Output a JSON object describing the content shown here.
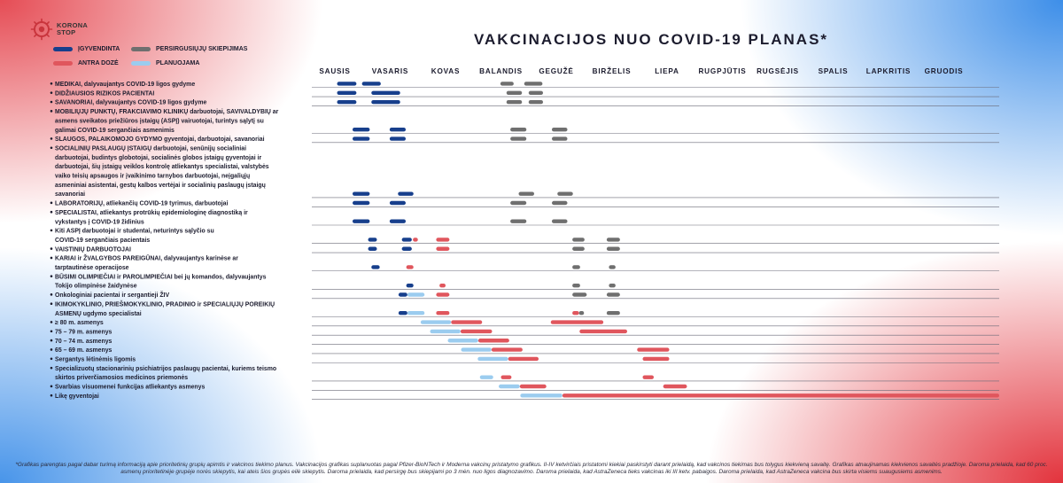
{
  "logo": {
    "text": "KORONA\nSTOP"
  },
  "title": "VAKCINACIJOS NUO COVID-19 PLANAS*",
  "colors": {
    "implemented": "#173f8c",
    "planned": "#9bccef",
    "second_dose": "#e0565d",
    "previously_ill": "#6f6f6f"
  },
  "legend": [
    {
      "key": "implemented",
      "label": "ĮGYVENDINTA"
    },
    {
      "key": "previously_ill",
      "label": "PERSIRGUSIŲJŲ SKIEPIJIMAS"
    },
    {
      "key": "second_dose",
      "label": "ANTRA DOZĖ"
    },
    {
      "key": "planned",
      "label": "PLANUOJAMA"
    }
  ],
  "chart_data": {
    "type": "gantt",
    "months": [
      "SAUSIS",
      "VASARIS",
      "KOVAS",
      "BALANDIS",
      "GEGUŽĖ",
      "BIRŽELIS",
      "LIEPA",
      "RUGPJŪTIS",
      "RUGSĖJIS",
      "SPALIS",
      "LAPKRITIS",
      "GRUODIS"
    ],
    "x_range": [
      1,
      13
    ],
    "rows": [
      {
        "lines": [
          "MEDIKAI, dalyvaujantys COVID-19 ligos gydyme"
        ],
        "segments": [
          [
            1.04,
            1.39,
            "implemented"
          ],
          [
            1.49,
            1.83,
            "implemented"
          ],
          [
            3.99,
            4.23,
            "previously_ill"
          ],
          [
            4.42,
            4.75,
            "previously_ill"
          ]
        ]
      },
      {
        "lines": [
          "DIDŽIAUSIOS RIZIKOS PACIENTAI"
        ],
        "segments": [
          [
            1.04,
            1.39,
            "implemented"
          ],
          [
            1.66,
            2.18,
            "implemented"
          ],
          [
            4.1,
            4.38,
            "previously_ill"
          ],
          [
            4.5,
            4.76,
            "previously_ill"
          ]
        ]
      },
      {
        "lines": [
          "SAVANORIAI, dalyvaujantys COVID-19 ligos gydyme"
        ],
        "segments": [
          [
            1.04,
            1.39,
            "implemented"
          ],
          [
            1.66,
            2.18,
            "implemented"
          ],
          [
            4.1,
            4.38,
            "previously_ill"
          ],
          [
            4.5,
            4.76,
            "previously_ill"
          ]
        ]
      },
      {
        "lines": [
          "MOBILIŲJŲ PUNKTŲ, FRAKCIAVIMO KLINIKŲ darbuotojai, SAVIVALDYBIŲ ar",
          "asmens sveikatos priežiūros įstaigų (ASPĮ) vairuotojai, turintys sąlytį su",
          "galimai COVID-19 sergančiais asmenimis"
        ],
        "segments": [
          [
            1.32,
            1.63,
            "implemented"
          ],
          [
            1.99,
            2.28,
            "implemented"
          ],
          [
            4.17,
            4.46,
            "previously_ill"
          ],
          [
            4.92,
            5.2,
            "previously_ill"
          ]
        ]
      },
      {
        "lines": [
          "SLAUGOS, PALAIKOMOJO GYDYMO gyventojai, darbuotojai, savanoriai"
        ],
        "segments": [
          [
            1.32,
            1.63,
            "implemented"
          ],
          [
            1.99,
            2.28,
            "implemented"
          ],
          [
            4.17,
            4.46,
            "previously_ill"
          ],
          [
            4.92,
            5.2,
            "previously_ill"
          ]
        ]
      },
      {
        "lines": [
          "SOCIALINIŲ PASLAUGŲ ĮSTAIGŲ darbuotojai, senūnijų socialiniai",
          "darbuotojai, budintys globotojai, socialinės globos įstaigų gyventojai ir",
          "darbuotojai, šių įstaigų veiklos kontrolę atliekantys specialistai, valstybės",
          "vaiko teisių apsaugos ir įvaikinimo tarnybos darbuotojai, neįgaliųjų",
          "asmeniniai asistentai, gestų kalbos vertėjai ir socialinių paslaugų įstaigų",
          "savanoriai"
        ],
        "segments": [
          [
            1.32,
            1.63,
            "implemented"
          ],
          [
            2.14,
            2.42,
            "implemented"
          ],
          [
            4.32,
            4.6,
            "previously_ill"
          ],
          [
            5.02,
            5.3,
            "previously_ill"
          ]
        ]
      },
      {
        "lines": [
          "LABORATORIJŲ, atliekančių COVID-19 tyrimus, darbuotojai"
        ],
        "segments": [
          [
            1.32,
            1.63,
            "implemented"
          ],
          [
            1.99,
            2.28,
            "implemented"
          ],
          [
            4.17,
            4.46,
            "previously_ill"
          ],
          [
            4.92,
            5.2,
            "previously_ill"
          ]
        ]
      },
      {
        "lines": [
          "SPECIALISTAI, atliekantys protrūkių epidemiologinę diagnostiką ir",
          "vykstantys į COVID-19 židinius"
        ],
        "segments": [
          [
            1.32,
            1.63,
            "implemented"
          ],
          [
            1.99,
            2.28,
            "implemented"
          ],
          [
            4.17,
            4.46,
            "previously_ill"
          ],
          [
            4.92,
            5.2,
            "previously_ill"
          ]
        ]
      },
      {
        "lines": [
          "Kiti ASPĮ darbuotojai ir studentai, neturintys sąlyčio su",
          "COVID-19 sergančiais pacientais"
        ],
        "segments": [
          [
            1.6,
            1.76,
            "implemented"
          ],
          [
            2.21,
            2.39,
            "implemented"
          ],
          [
            2.41,
            2.5,
            "second_dose"
          ],
          [
            2.83,
            3.07,
            "second_dose"
          ],
          [
            5.29,
            5.51,
            "previously_ill"
          ],
          [
            5.91,
            6.15,
            "previously_ill"
          ]
        ]
      },
      {
        "lines": [
          "VAISTINIŲ DARBUOTOJAI"
        ],
        "segments": [
          [
            1.6,
            1.76,
            "implemented"
          ],
          [
            2.21,
            2.39,
            "implemented"
          ],
          [
            2.83,
            3.07,
            "second_dose"
          ],
          [
            5.29,
            5.51,
            "previously_ill"
          ],
          [
            5.91,
            6.15,
            "previously_ill"
          ]
        ]
      },
      {
        "lines": [
          "KARIAI ir ŽVALGYBOS PAREIGŪNAI, dalyvaujantys karinėse ar",
          "tarptautinėse operacijose"
        ],
        "segments": [
          [
            1.66,
            1.81,
            "implemented"
          ],
          [
            2.29,
            2.42,
            "second_dose"
          ],
          [
            5.29,
            5.43,
            "previously_ill"
          ],
          [
            5.95,
            6.07,
            "previously_ill"
          ]
        ]
      },
      {
        "lines": [
          "BŪSIMI OLIMPIEČIAI ir PAROLIMPIEČIAI bei jų komandos, dalyvaujantys",
          "Tokijo olimpinėse žaidynėse"
        ],
        "segments": [
          [
            2.29,
            2.42,
            "implemented"
          ],
          [
            2.89,
            3.0,
            "second_dose"
          ],
          [
            5.29,
            5.43,
            "previously_ill"
          ],
          [
            5.95,
            6.07,
            "previously_ill"
          ]
        ]
      },
      {
        "lines": [
          "Onkologiniai pacientai ir sergantieji ŽIV"
        ],
        "segments": [
          [
            2.15,
            2.31,
            "implemented"
          ],
          [
            2.31,
            2.62,
            "planned"
          ],
          [
            2.83,
            3.07,
            "second_dose"
          ],
          [
            5.29,
            5.55,
            "previously_ill"
          ],
          [
            5.91,
            6.15,
            "previously_ill"
          ]
        ]
      },
      {
        "lines": [
          "IKIMOKYKLINIO, PRIEŠMOKYKLINIO, PRADINIO ir SPECIALIŲJŲ POREIKIŲ",
          "ASMENŲ ugdymo specialistai"
        ],
        "segments": [
          [
            2.15,
            2.31,
            "implemented"
          ],
          [
            2.31,
            2.62,
            "planned"
          ],
          [
            2.83,
            3.07,
            "second_dose"
          ],
          [
            5.29,
            5.41,
            "second_dose"
          ],
          [
            5.41,
            5.5,
            "previously_ill"
          ],
          [
            5.91,
            6.15,
            "previously_ill"
          ]
        ]
      },
      {
        "lines": [
          "≥ 80 m. asmenys"
        ],
        "segments": [
          [
            2.55,
            3.1,
            "planned"
          ],
          [
            3.1,
            3.66,
            "second_dose"
          ],
          [
            4.9,
            5.85,
            "second_dose"
          ]
        ]
      },
      {
        "lines": [
          "75 – 79 m. asmenys"
        ],
        "segments": [
          [
            2.72,
            3.27,
            "planned"
          ],
          [
            3.27,
            3.84,
            "second_dose"
          ],
          [
            5.42,
            6.28,
            "second_dose"
          ]
        ]
      },
      {
        "lines": [
          "70 – 74 m. asmenys"
        ],
        "segments": [
          [
            3.04,
            3.59,
            "planned"
          ],
          [
            3.59,
            4.15,
            "second_dose"
          ]
        ]
      },
      {
        "lines": [
          "65 – 69 m. asmenys"
        ],
        "segments": [
          [
            3.28,
            3.83,
            "planned"
          ],
          [
            3.83,
            4.39,
            "second_dose"
          ],
          [
            6.46,
            7.04,
            "second_dose"
          ]
        ]
      },
      {
        "lines": [
          "Sergantys lėtinėmis ligomis"
        ],
        "segments": [
          [
            3.58,
            4.13,
            "planned"
          ],
          [
            4.13,
            4.68,
            "second_dose"
          ],
          [
            6.56,
            7.04,
            "second_dose"
          ]
        ]
      },
      {
        "lines": [
          "Specializuotų stacionarinių psichiatrijos paslaugų pacientai, kuriems teismo",
          "skirtos priverčiamosios medicinos priemonės"
        ],
        "segments": [
          [
            3.62,
            3.86,
            "planned"
          ],
          [
            4.0,
            4.19,
            "second_dose"
          ],
          [
            6.56,
            6.76,
            "second_dose"
          ]
        ]
      },
      {
        "lines": [
          "Svarbias visuomenei funkcijas atliekantys asmenys"
        ],
        "segments": [
          [
            3.96,
            4.34,
            "planned"
          ],
          [
            4.34,
            4.82,
            "second_dose"
          ],
          [
            6.93,
            7.36,
            "second_dose"
          ]
        ]
      },
      {
        "lines": [
          "Likę gyventojai"
        ],
        "segments": [
          [
            4.35,
            5.11,
            "planned"
          ],
          [
            5.11,
            13.0,
            "second_dose"
          ]
        ]
      }
    ]
  },
  "footnote": "*Grafikas parengtas pagal dabar turimą informaciją apie prioritetinių grupių apimtis ir vakcinos tiekimo planus. Vakcinacijos grafikas suplanuotas pagal Pfizer-BioNTech ir Moderna vakcinų pristatymo grafikus. II-IV ketvirčiais pristatomi kiekiai paskirstyti darant prielaidą, kad vakcinos tiekimas bus tolygus kiekvieną savaitę. Grafikas atnaujinamas kiekvienos savaitės pradžioje. Daroma prielaida, kad 60 proc. asmenų prioritetinėje grupėje norės skiepytis, kai ateis šios grupės eilė skiepytis. Daroma prielaida, kad persirgę bus skiepijami po 3 mėn. nuo ligos diagnozavimo. Daroma prielaida, kad AstraZeneca tieks vakcinas iki III ketv. pabaigos. Daroma prielaida, kad AstraZeneca vakcina bus skirta visiems suaugusiems asmenims."
}
